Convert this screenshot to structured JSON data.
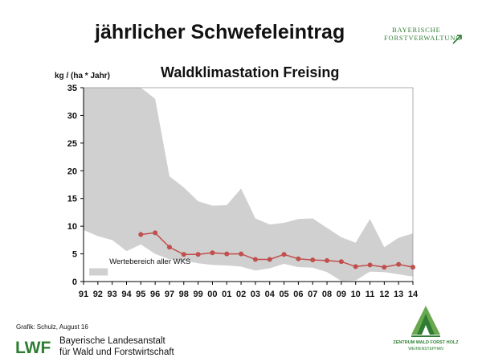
{
  "slide": {
    "title": "jährlicher Schwefeleintrag",
    "brand_top": [
      "BAYERISCHE",
      "FORSTVERWALTUNG"
    ],
    "credit": "Grafik: Schulz, August 16",
    "lwf_logo_text": "LWF",
    "lwf_text_line1": "Bayerische Landesanstalt",
    "lwf_text_line2": "für Wald und Forstwirtschaft",
    "zentrum_line1": "ZENTRUM WALD FORST HOLZ",
    "zentrum_line2": "WEIHENSTEPHAN"
  },
  "colors": {
    "range_band": "#d0d0d0",
    "series": "#c0504d",
    "axis": "#000000",
    "brand_green": "#2e7d32"
  },
  "chart_data": {
    "type": "line",
    "title": "Waldklimastation Freising",
    "ylabel": "kg / (ha * Jahr)",
    "xlabel": "",
    "ylim": [
      0,
      35
    ],
    "yticks": [
      0,
      5,
      10,
      15,
      20,
      25,
      30,
      35
    ],
    "grid": false,
    "categories": [
      "91",
      "92",
      "93",
      "94",
      "95",
      "96",
      "97",
      "98",
      "99",
      "00",
      "01",
      "02",
      "03",
      "04",
      "05",
      "06",
      "07",
      "08",
      "09",
      "10",
      "11",
      "12",
      "13",
      "14"
    ],
    "series": [
      {
        "values": [
          null,
          null,
          null,
          null,
          8.5,
          8.8,
          6.2,
          4.9,
          4.9,
          5.2,
          5.0,
          5.0,
          4.0,
          4.0,
          4.9,
          4.1,
          3.9,
          3.8,
          3.6,
          2.7,
          3.0,
          2.6,
          3.1,
          2.6
        ],
        "color": "#c0504d"
      }
    ],
    "range_band": {
      "label": "Wertebereich aller WKS",
      "upper": [
        35,
        35,
        35,
        35,
        35,
        33,
        19,
        17,
        14.5,
        13.7,
        13.8,
        16.8,
        11.4,
        10.3,
        10.6,
        11.3,
        11.4,
        9.7,
        8.0,
        7.0,
        11.3,
        6.2,
        7.9,
        8.7
      ],
      "lower": [
        9.3,
        8.2,
        7.5,
        5.5,
        6.7,
        5.0,
        4.0,
        3.8,
        3.3,
        3.0,
        2.9,
        2.7,
        2.0,
        2.4,
        3.2,
        2.6,
        2.5,
        1.7,
        0.1,
        0.2,
        1.8,
        1.7,
        1.3,
        0.9
      ]
    },
    "legend": "bottom-left"
  }
}
